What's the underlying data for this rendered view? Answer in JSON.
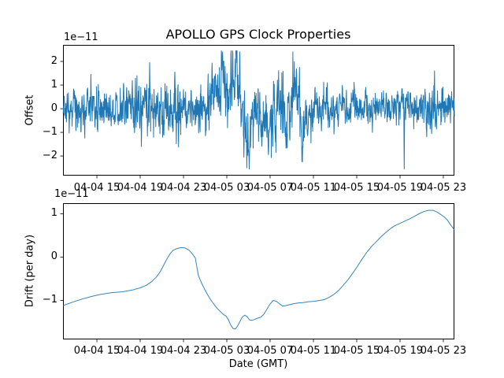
{
  "figure": {
    "title": "APOLLO GPS Clock Properties",
    "xlabel": "Date (GMT)",
    "background": "#ffffff",
    "line_color": "#1f77b4",
    "text_color": "#000000"
  },
  "xaxis": {
    "tick_labels": [
      "04-04 15",
      "04-04 19",
      "04-04 23",
      "04-05 03",
      "04-05 07",
      "04-05 11",
      "04-05 15",
      "04-05 19",
      "04-05 23"
    ],
    "tick_hours": [
      15,
      19,
      23,
      27,
      31,
      35,
      39,
      43,
      47
    ],
    "xlim_hours": [
      11.87,
      48.02
    ],
    "x_unit": "hours since 04-04 00:00, labels formatted MM-DD HH"
  },
  "chart_data": [
    {
      "type": "line",
      "name": "offset",
      "title": "APOLLO GPS Clock Properties",
      "ylabel": "Offset",
      "offset_text": "1e−11",
      "yticks": [
        2,
        1,
        0,
        -1,
        -2
      ],
      "ylim": [
        -2.83,
        2.7
      ],
      "legend": "none",
      "grid": false,
      "description": "Dense noisy clock-offset time series (units 1e-11), mean ~0, typical band ±1, burst of large swings 04-05 01:00–10:00 peaking +2.45 and −2.5, isolated deep spike −2.55 near 04-05 19:30",
      "max_value_approx": 2.45,
      "min_value_approx": -2.55,
      "series_synthesis": {
        "seed": 20,
        "n_points": 1600,
        "sigma": 0.42,
        "ar": 0.45,
        "amplitude_envelope": [
          [
            11.87,
            0.8
          ],
          [
            13.5,
            0.95
          ],
          [
            14.5,
            1.25
          ],
          [
            15.3,
            0.85
          ],
          [
            17.3,
            0.85
          ],
          [
            18.3,
            1.15
          ],
          [
            19.6,
            1.4
          ],
          [
            20.2,
            0.9
          ],
          [
            21.4,
            1.2
          ],
          [
            22.4,
            1.45
          ],
          [
            23.3,
            0.9
          ],
          [
            24.8,
            1.0
          ],
          [
            25.4,
            1.5
          ],
          [
            27.0,
            1.6
          ],
          [
            28.5,
            1.65
          ],
          [
            29.3,
            1.25
          ],
          [
            30.6,
            1.35
          ],
          [
            31.8,
            1.5
          ],
          [
            33.5,
            1.6
          ],
          [
            34.3,
            1.55
          ],
          [
            35.0,
            1.05
          ],
          [
            36.5,
            0.95
          ],
          [
            38.0,
            0.85
          ],
          [
            40.5,
            0.78
          ],
          [
            42.5,
            0.82
          ],
          [
            43.4,
            0.95
          ],
          [
            44.8,
            0.78
          ],
          [
            46.2,
            1.0
          ],
          [
            47.2,
            0.9
          ],
          [
            48.02,
            1.05
          ]
        ],
        "mean_path": [
          [
            11.87,
            0
          ],
          [
            24.9,
            0
          ],
          [
            25.6,
            0.9
          ],
          [
            26.1,
            0.1
          ],
          [
            26.6,
            1.6
          ],
          [
            27.0,
            0.4
          ],
          [
            27.9,
            1.6
          ],
          [
            28.3,
            0.1
          ],
          [
            28.9,
            -1.2
          ],
          [
            29.4,
            -0.2
          ],
          [
            29.9,
            0.3
          ],
          [
            30.5,
            -0.6
          ],
          [
            31.0,
            -0.9
          ],
          [
            31.5,
            -0.3
          ],
          [
            32.0,
            0.3
          ],
          [
            32.5,
            -0.7
          ],
          [
            33.0,
            0.5
          ],
          [
            33.6,
            0.7
          ],
          [
            34.0,
            -0.9
          ],
          [
            34.4,
            -0.5
          ],
          [
            34.9,
            0
          ],
          [
            48.02,
            0
          ]
        ],
        "spikes": [
          [
            14.45,
            1.45
          ],
          [
            19.1,
            -1.6
          ],
          [
            19.87,
            1.95
          ],
          [
            22.2,
            1.55
          ],
          [
            22.55,
            -1.62
          ],
          [
            26.6,
            2.4
          ],
          [
            27.9,
            2.45
          ],
          [
            28.85,
            -2.5
          ],
          [
            31.55,
            -1.85
          ],
          [
            33.7,
            1.75
          ],
          [
            33.98,
            -2.25
          ],
          [
            43.38,
            -2.55
          ],
          [
            46.2,
            1.6
          ]
        ],
        "clip": [
          -2.55,
          2.45
        ]
      }
    },
    {
      "type": "line",
      "name": "drift",
      "ylabel": "Drift (per day)",
      "offset_text": "1e−11",
      "yticks": [
        1,
        0,
        -1
      ],
      "ylim": [
        -1.9,
        1.245
      ],
      "legend": "none",
      "grid": false,
      "description": "Smooth clock-drift curve (units 1e-11/day): rises from −1.12, local max +0.22 near 04-04 23, plunges to −1.66 near 04-05 03:30, wiggles near −1.4, plateau ~−1.0, climbs to +1.08 near 04-05 22, ends ~+0.63",
      "points": [
        [
          11.87,
          -1.12
        ],
        [
          12.75,
          -1.04
        ],
        [
          13.62,
          -0.97
        ],
        [
          14.49,
          -0.91
        ],
        [
          15.36,
          -0.86
        ],
        [
          16.38,
          -0.82
        ],
        [
          17.4,
          -0.8
        ],
        [
          18.27,
          -0.76
        ],
        [
          19.0,
          -0.71
        ],
        [
          19.58,
          -0.65
        ],
        [
          20.09,
          -0.56
        ],
        [
          20.53,
          -0.45
        ],
        [
          20.89,
          -0.32
        ],
        [
          21.18,
          -0.18
        ],
        [
          21.47,
          -0.04
        ],
        [
          21.76,
          0.08
        ],
        [
          22.05,
          0.16
        ],
        [
          22.42,
          0.2
        ],
        [
          22.78,
          0.22
        ],
        [
          23.15,
          0.21
        ],
        [
          23.51,
          0.16
        ],
        [
          23.8,
          0.08
        ],
        [
          24.09,
          -0.02
        ],
        [
          24.23,
          -0.22
        ],
        [
          24.38,
          -0.43
        ],
        [
          24.67,
          -0.6
        ],
        [
          24.96,
          -0.75
        ],
        [
          25.25,
          -0.88
        ],
        [
          25.55,
          -1.0
        ],
        [
          25.84,
          -1.1
        ],
        [
          26.13,
          -1.19
        ],
        [
          26.42,
          -1.26
        ],
        [
          26.71,
          -1.33
        ],
        [
          26.93,
          -1.36
        ],
        [
          27.15,
          -1.45
        ],
        [
          27.36,
          -1.57
        ],
        [
          27.58,
          -1.65
        ],
        [
          27.8,
          -1.66
        ],
        [
          28.02,
          -1.58
        ],
        [
          28.24,
          -1.47
        ],
        [
          28.45,
          -1.38
        ],
        [
          28.67,
          -1.34
        ],
        [
          28.89,
          -1.38
        ],
        [
          29.11,
          -1.45
        ],
        [
          29.33,
          -1.46
        ],
        [
          29.55,
          -1.44
        ],
        [
          29.84,
          -1.41
        ],
        [
          30.13,
          -1.39
        ],
        [
          30.42,
          -1.32
        ],
        [
          30.71,
          -1.2
        ],
        [
          31.0,
          -1.08
        ],
        [
          31.29,
          -1.0
        ],
        [
          31.58,
          -1.02
        ],
        [
          31.87,
          -1.08
        ],
        [
          32.16,
          -1.13
        ],
        [
          32.45,
          -1.12
        ],
        [
          32.75,
          -1.1
        ],
        [
          33.11,
          -1.08
        ],
        [
          33.55,
          -1.06
        ],
        [
          34.05,
          -1.05
        ],
        [
          34.56,
          -1.03
        ],
        [
          35.07,
          -1.02
        ],
        [
          35.58,
          -1.0
        ],
        [
          36.02,
          -0.98
        ],
        [
          36.45,
          -0.93
        ],
        [
          36.89,
          -0.86
        ],
        [
          37.33,
          -0.77
        ],
        [
          37.76,
          -0.65
        ],
        [
          38.2,
          -0.52
        ],
        [
          38.64,
          -0.37
        ],
        [
          39.07,
          -0.21
        ],
        [
          39.51,
          -0.04
        ],
        [
          39.95,
          0.12
        ],
        [
          40.38,
          0.25
        ],
        [
          40.82,
          0.36
        ],
        [
          41.25,
          0.47
        ],
        [
          41.69,
          0.57
        ],
        [
          42.13,
          0.66
        ],
        [
          42.56,
          0.73
        ],
        [
          43.0,
          0.78
        ],
        [
          43.44,
          0.83
        ],
        [
          43.87,
          0.88
        ],
        [
          44.31,
          0.94
        ],
        [
          44.75,
          1.0
        ],
        [
          45.18,
          1.05
        ],
        [
          45.62,
          1.08
        ],
        [
          46.05,
          1.08
        ],
        [
          46.42,
          1.04
        ],
        [
          46.78,
          0.98
        ],
        [
          47.07,
          0.93
        ],
        [
          47.36,
          0.86
        ],
        [
          47.65,
          0.75
        ],
        [
          48.02,
          0.63
        ]
      ]
    }
  ]
}
